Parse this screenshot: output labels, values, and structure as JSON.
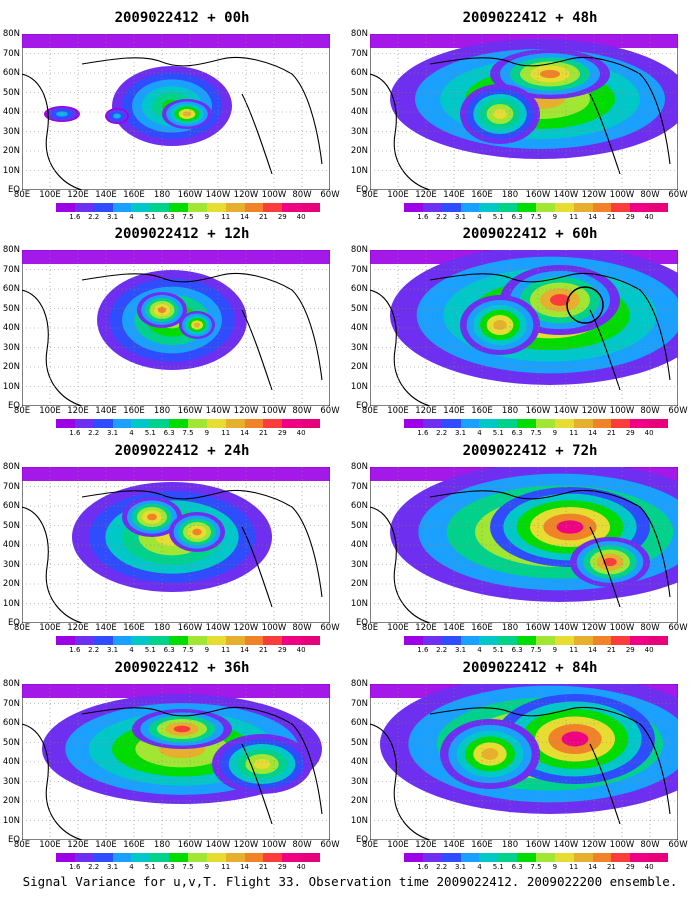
{
  "panels": [
    {
      "title": "2009022412 + 00h"
    },
    {
      "title": "2009022412 + 12h"
    },
    {
      "title": "2009022412 + 24h"
    },
    {
      "title": "2009022412 + 36h"
    },
    {
      "title": "2009022412 + 48h"
    },
    {
      "title": "2009022412 + 60h"
    },
    {
      "title": "2009022412 + 72h"
    },
    {
      "title": "2009022412 + 84h"
    }
  ],
  "lon_labels": [
    "80E",
    "100E",
    "120E",
    "140E",
    "160E",
    "180",
    "160W",
    "140W",
    "120W",
    "100W",
    "80W",
    "60W"
  ],
  "lat_labels": [
    "80N",
    "70N",
    "60N",
    "50N",
    "40N",
    "30N",
    "20N",
    "10N",
    "EQ"
  ],
  "legend_levels": [
    "1.6",
    "2.2",
    "3.1",
    "4",
    "5.1",
    "6.3",
    "7.5",
    "9",
    "11",
    "14",
    "21",
    "29",
    "40"
  ],
  "legend_colors": [
    "#9b00e6",
    "#6e2ff0",
    "#2f4cff",
    "#1aa0ff",
    "#00c8c8",
    "#00d28c",
    "#00dc00",
    "#a0e632",
    "#e6dc32",
    "#e6af2d",
    "#f08228",
    "#fa3c3c",
    "#f00082",
    "#e6007a"
  ],
  "footer": "Signal Variance for u,v,T. Flight 33. Observation time 2009022412. 2009022200 ensemble."
}
